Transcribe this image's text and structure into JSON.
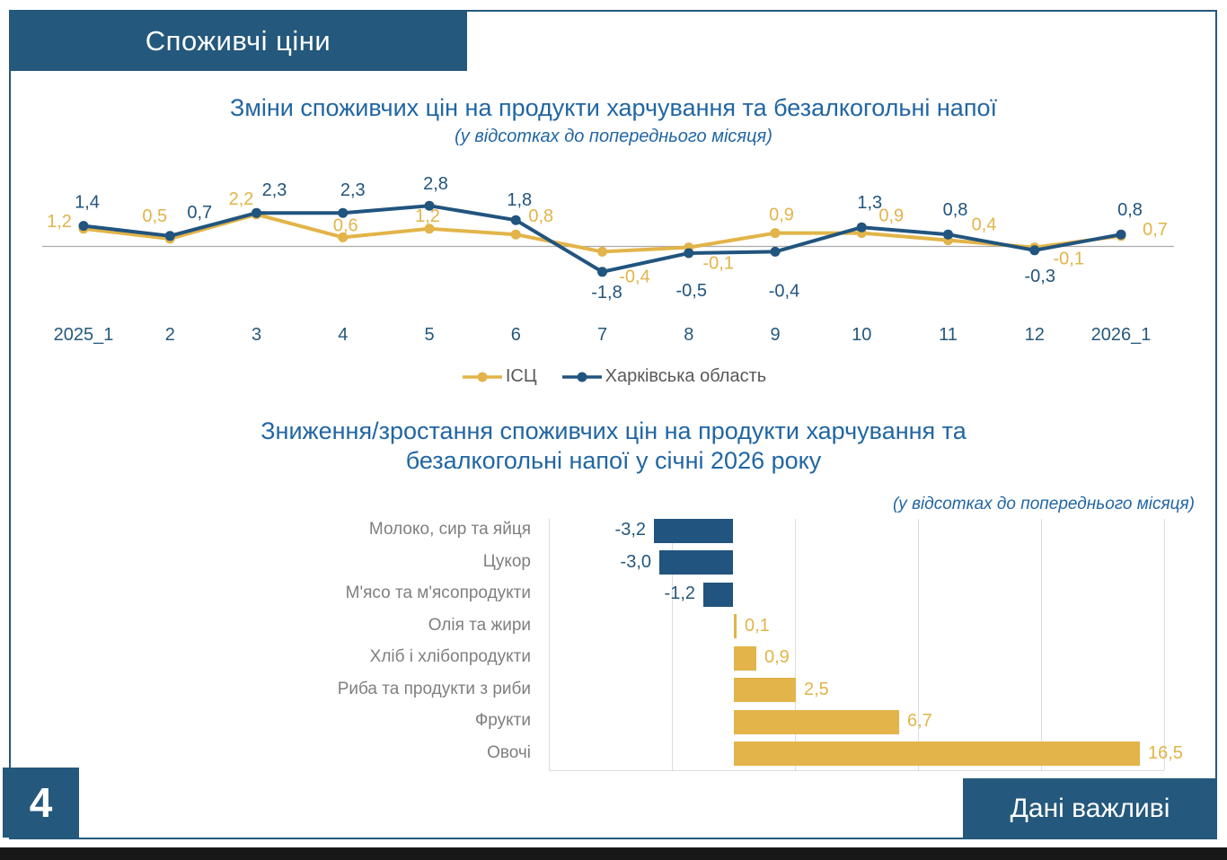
{
  "header": {
    "title": "Споживчі ціни"
  },
  "footer": {
    "page_number": "4",
    "banner": "Дані важливі"
  },
  "colors": {
    "dark_blue": "#24587c",
    "series_blue": "#21547e",
    "series_yellow": "#e2b449",
    "title_blue": "#2166a3",
    "legend_text": "#595959",
    "category_text": "#7f7f7f"
  },
  "chart_data": [
    {
      "type": "line",
      "title": "Зміни споживчих цін на продукти харчування та безалкогольні напої",
      "subtitle": "(у відсотках до попереднього місяця)",
      "x": [
        "2025_1",
        "2",
        "3",
        "4",
        "5",
        "6",
        "7",
        "8",
        "9",
        "10",
        "11",
        "12",
        "2026_1"
      ],
      "ylim": [
        -2.5,
        3.5
      ],
      "grid": "zero-line-only",
      "legend_position": "bottom-center",
      "series": [
        {
          "name": "ІСЦ",
          "color": "#e2b449",
          "values": [
            1.2,
            0.5,
            2.2,
            0.6,
            1.2,
            0.8,
            -0.4,
            -0.1,
            0.9,
            0.9,
            0.4,
            -0.1,
            0.7
          ],
          "labels": [
            "1,2",
            "0,5",
            "2,2",
            "0,6",
            "1,2",
            "0,8",
            "-0,4",
            "-0,1",
            "0,9",
            "0,9",
            "0,4",
            "-0,1",
            "0,7"
          ],
          "label_offsets": [
            [
              -27,
              -8
            ],
            [
              -17,
              -25
            ],
            [
              -17,
              -17
            ],
            [
              3,
              -13
            ],
            [
              -2,
              -14
            ],
            [
              28,
              -20
            ],
            [
              36,
              28
            ],
            [
              33,
              18
            ],
            [
              7,
              -20
            ],
            [
              33,
              -19
            ],
            [
              40,
              -17
            ],
            [
              38,
              13
            ],
            [
              38,
              -7
            ]
          ]
        },
        {
          "name": "Харківська область",
          "color": "#21547e",
          "values": [
            1.4,
            0.7,
            2.3,
            2.3,
            2.8,
            1.8,
            -1.8,
            -0.5,
            -0.4,
            1.3,
            0.8,
            -0.3,
            0.8
          ],
          "labels": [
            "1,4",
            "0,7",
            "2,3",
            "2,3",
            "2,8",
            "1,8",
            "-1,8",
            "-0,5",
            "-0,4",
            "1,3",
            "0,8",
            "-0,3",
            "0,8"
          ],
          "label_offsets": [
            [
              4,
              -26
            ],
            [
              33,
              -26
            ],
            [
              20,
              -25
            ],
            [
              11,
              -25
            ],
            [
              7,
              -24
            ],
            [
              4,
              -22
            ],
            [
              5,
              23
            ],
            [
              3,
              42
            ],
            [
              10,
              44
            ],
            [
              9,
              -27
            ],
            [
              8,
              -27
            ],
            [
              6,
              29
            ],
            [
              10,
              -27
            ]
          ]
        }
      ]
    },
    {
      "type": "bar",
      "orientation": "horizontal",
      "title_line1": "Зниження/зростання споживчих цін на продукти харчування та",
      "title_line2": "безалкогольні напої у січні 2026 року",
      "note": "(у відсотках до попереднього місяця)",
      "categories": [
        "Молоко, сир та яйця",
        "Цукор",
        "М'ясо та м'ясопродукти",
        "Олія та жири",
        "Хліб і хлібопродукти",
        "Риба та продукти з риби",
        "Фрукти",
        "Овочі"
      ],
      "values": [
        -3.2,
        -3.0,
        -1.2,
        0.1,
        0.9,
        2.5,
        6.7,
        16.5
      ],
      "labels": [
        "-3,2",
        "-3,0",
        "-1,2",
        "0,1",
        "0,9",
        "2,5",
        "6,7",
        "16,5"
      ],
      "negative_color": "#21547e",
      "positive_color": "#e2b449",
      "negative_label_color": "#24587c",
      "positive_label_color": "#e2b449",
      "xlim": [
        -7.5,
        17.5
      ],
      "gridline_step": 5
    }
  ]
}
